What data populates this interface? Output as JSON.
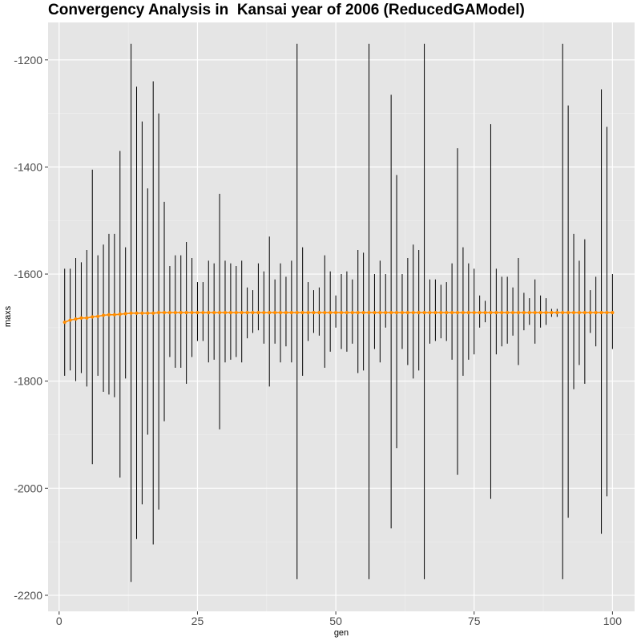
{
  "chart_data": {
    "type": "line",
    "title": "Convergency Analysis in  Kansai year of 2006 (ReducedGAModel)",
    "xlabel": "gen",
    "ylabel": "maxs",
    "xlim": [
      -2,
      104
    ],
    "ylim": [
      -2230,
      -1130
    ],
    "x_ticks": [
      0,
      25,
      50,
      75,
      100
    ],
    "y_ticks": [
      -2200,
      -2000,
      -1800,
      -1600,
      -1400,
      -1200
    ],
    "grid": true,
    "legend": "none",
    "colors": {
      "panel": "#e5e5e5",
      "grid_major": "#ffffff",
      "grid_minor": "#f0f0f0",
      "line": "#ff8c00",
      "errorbar": "#000000"
    },
    "series": [
      {
        "x": [
          1,
          2,
          3,
          4,
          5,
          6,
          7,
          8,
          9,
          10,
          11,
          12,
          13,
          14,
          15,
          16,
          17,
          18,
          19,
          20,
          21,
          22,
          23,
          24,
          25,
          26,
          27,
          28,
          29,
          30,
          31,
          32,
          33,
          34,
          35,
          36,
          37,
          38,
          39,
          40,
          41,
          42,
          43,
          44,
          45,
          46,
          47,
          48,
          49,
          50,
          51,
          52,
          53,
          54,
          55,
          56,
          57,
          58,
          59,
          60,
          61,
          62,
          63,
          64,
          65,
          66,
          67,
          68,
          69,
          70,
          71,
          72,
          73,
          74,
          75,
          76,
          77,
          78,
          79,
          80,
          81,
          82,
          83,
          84,
          85,
          86,
          87,
          88,
          89,
          90,
          91,
          92,
          93,
          94,
          95,
          96,
          97,
          98,
          99,
          100
        ],
        "y": [
          -1690,
          -1686,
          -1684,
          -1682,
          -1682,
          -1680,
          -1679,
          -1677,
          -1676,
          -1676,
          -1675,
          -1674,
          -1673,
          -1673,
          -1673,
          -1673,
          -1673,
          -1672,
          -1672,
          -1672,
          -1672,
          -1672,
          -1672,
          -1672,
          -1672,
          -1672,
          -1672,
          -1672,
          -1672,
          -1672,
          -1672,
          -1672,
          -1672,
          -1672,
          -1672,
          -1672,
          -1672,
          -1672,
          -1672,
          -1672,
          -1672,
          -1672,
          -1672,
          -1672,
          -1672,
          -1672,
          -1672,
          -1672,
          -1672,
          -1672,
          -1672,
          -1672,
          -1672,
          -1672,
          -1672,
          -1672,
          -1672,
          -1672,
          -1672,
          -1672,
          -1672,
          -1672,
          -1672,
          -1672,
          -1672,
          -1672,
          -1672,
          -1672,
          -1672,
          -1672,
          -1672,
          -1672,
          -1672,
          -1672,
          -1672,
          -1672,
          -1672,
          -1672,
          -1672,
          -1672,
          -1672,
          -1672,
          -1672,
          -1672,
          -1672,
          -1672,
          -1672,
          -1672,
          -1672,
          -1672,
          -1672,
          -1672,
          -1672,
          -1672,
          -1672,
          -1672,
          -1672,
          -1672,
          -1672,
          -1672
        ],
        "ymin": [
          -1790,
          -1780,
          -1800,
          -1785,
          -1810,
          -1955,
          -1790,
          -1820,
          -1825,
          -1830,
          -1980,
          -1795,
          -2175,
          -2095,
          -2030,
          -1900,
          -2105,
          -2040,
          -1875,
          -1755,
          -1775,
          -1775,
          -1805,
          -1755,
          -1725,
          -1725,
          -1765,
          -1760,
          -1890,
          -1765,
          -1760,
          -1755,
          -1765,
          -1720,
          -1710,
          -1705,
          -1730,
          -1810,
          -1730,
          -1765,
          -1735,
          -1765,
          -2170,
          -1790,
          -1725,
          -1710,
          -1715,
          -1775,
          -1745,
          -1700,
          -1740,
          -1745,
          -1730,
          -1785,
          -1780,
          -2170,
          -1740,
          -1765,
          -1700,
          -2075,
          -1925,
          -1740,
          -1770,
          -1795,
          -1780,
          -2170,
          -1730,
          -1725,
          -1720,
          -1725,
          -1760,
          -1975,
          -1790,
          -1760,
          -1750,
          -1700,
          -1690,
          -2020,
          -1750,
          -1735,
          -1730,
          -1715,
          -1770,
          -1705,
          -1695,
          -1730,
          -1700,
          -1695,
          -1680,
          -1680,
          -2170,
          -2055,
          -1815,
          -1770,
          -1805,
          -1710,
          -1735,
          -2085,
          -2015,
          -1740
        ],
        "ymax": [
          -1590,
          -1590,
          -1570,
          -1578,
          -1555,
          -1405,
          -1565,
          -1545,
          -1525,
          -1525,
          -1370,
          -1550,
          -1170,
          -1250,
          -1315,
          -1440,
          -1240,
          -1300,
          -1465,
          -1585,
          -1565,
          -1565,
          -1540,
          -1570,
          -1615,
          -1615,
          -1575,
          -1580,
          -1450,
          -1575,
          -1580,
          -1585,
          -1575,
          -1625,
          -1630,
          -1580,
          -1595,
          -1530,
          -1610,
          -1580,
          -1605,
          -1575,
          -1170,
          -1550,
          -1615,
          -1630,
          -1625,
          -1565,
          -1595,
          -1640,
          -1600,
          -1595,
          -1610,
          -1555,
          -1560,
          -1170,
          -1600,
          -1575,
          -1600,
          -1265,
          -1415,
          -1600,
          -1570,
          -1545,
          -1555,
          -1170,
          -1610,
          -1610,
          -1620,
          -1615,
          -1580,
          -1365,
          -1550,
          -1580,
          -1590,
          -1640,
          -1650,
          -1320,
          -1590,
          -1605,
          -1605,
          -1625,
          -1570,
          -1635,
          -1645,
          -1610,
          -1640,
          -1645,
          -1665,
          -1665,
          -1170,
          -1285,
          -1525,
          -1575,
          -1535,
          -1630,
          -1605,
          -1255,
          -1325,
          -1600
        ]
      }
    ]
  }
}
